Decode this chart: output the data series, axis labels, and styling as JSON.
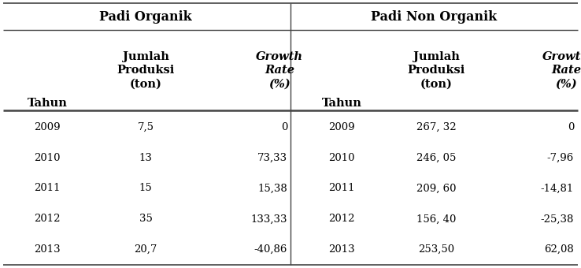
{
  "title_left": "Padi Organik",
  "title_right": "Padi Non Organik",
  "rows_left": [
    [
      "2009",
      "7,5",
      "0"
    ],
    [
      "2010",
      "13",
      "73,33"
    ],
    [
      "2011",
      "15",
      "15,38"
    ],
    [
      "2012",
      "35",
      "133,33"
    ],
    [
      "2013",
      "20,7",
      "-40,86"
    ]
  ],
  "rows_right": [
    [
      "2009",
      "267, 32",
      "0"
    ],
    [
      "2010",
      "246, 05",
      "-7,96"
    ],
    [
      "2011",
      "209, 60",
      "-14,81"
    ],
    [
      "2012",
      "156, 40",
      "-25,38"
    ],
    [
      "2013",
      "253,50",
      "62,08"
    ]
  ],
  "bg_color": "#ffffff",
  "text_color": "#000000",
  "font_size": 9.5,
  "header_font_size": 10.5,
  "title_font_size": 11.5,
  "line_color": "#555555",
  "thick_line_color": "#333333"
}
